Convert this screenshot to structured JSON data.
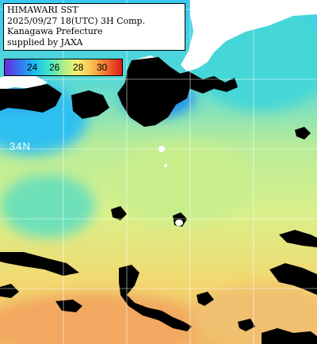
{
  "title_lines": [
    "HIMAWARI SST",
    "2025/09/27 18(UTC) 3H Comp.",
    "Kanagawa Prefecture",
    "supplied by JAXA"
  ],
  "colorbar": {
    "ticks": [
      "24",
      "26",
      "28",
      "30"
    ],
    "colors": [
      "#6a2bd8",
      "#3a6ef0",
      "#18b8f0",
      "#40e8c8",
      "#b8f080",
      "#f8f070",
      "#f8c050",
      "#f07830",
      "#e01818"
    ]
  },
  "grid_label": "34N",
  "colors": {
    "land": "#ffffff",
    "cloud_mask": "#000000",
    "grid": "#ffffff"
  }
}
